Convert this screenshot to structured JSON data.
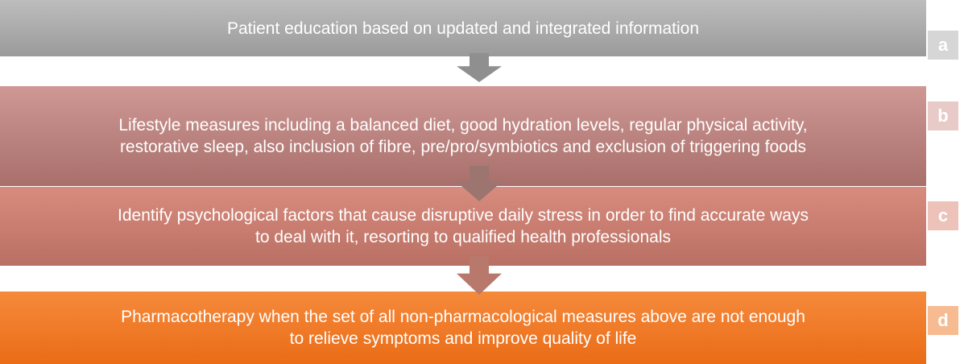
{
  "steps": [
    {
      "label": "a",
      "lines": [
        "Patient education based on updated and integrated information"
      ]
    },
    {
      "label": "b",
      "lines": [
        "Lifestyle measures including a balanced diet, good hydration levels, regular physical activity,",
        "restorative sleep, also inclusion of fibre, pre/pro/symbiotics and exclusion of triggering foods"
      ]
    },
    {
      "label": "c",
      "lines": [
        "Identify psychological factors that cause disruptive daily stress in order to find accurate ways",
        "to deal with it, resorting to qualified health professionals"
      ]
    },
    {
      "label": "d",
      "lines": [
        "Pharmacotherapy when the set of all non-pharmacological measures above are not enough",
        "to relieve symptoms and improve quality of life"
      ]
    }
  ]
}
